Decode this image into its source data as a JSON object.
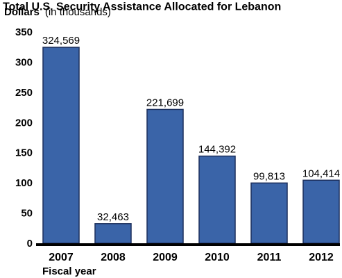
{
  "colors": {
    "bar": "#3a64a8",
    "bar_outline": "#1c2f5c",
    "axis": "#000000"
  },
  "chart_data": {
    "type": "bar",
    "title": "Total U.S. Security Assistance Allocated for Lebanon",
    "ylabel": "Dollars",
    "ylabel_unit": "(in thousands)",
    "xlabel": "Fiscal year",
    "categories": [
      "2007",
      "2008",
      "2009",
      "2010",
      "2011",
      "2012"
    ],
    "values": [
      324569,
      32463,
      221699,
      144392,
      99813,
      104414
    ],
    "data_labels": [
      "324,569",
      "32,463",
      "221,699",
      "144,392",
      "99,813",
      "104,414"
    ],
    "yticks": [
      0,
      50,
      100,
      150,
      200,
      250,
      300,
      350
    ],
    "ylim": [
      0,
      350000
    ],
    "grid": false,
    "legend": "none"
  }
}
